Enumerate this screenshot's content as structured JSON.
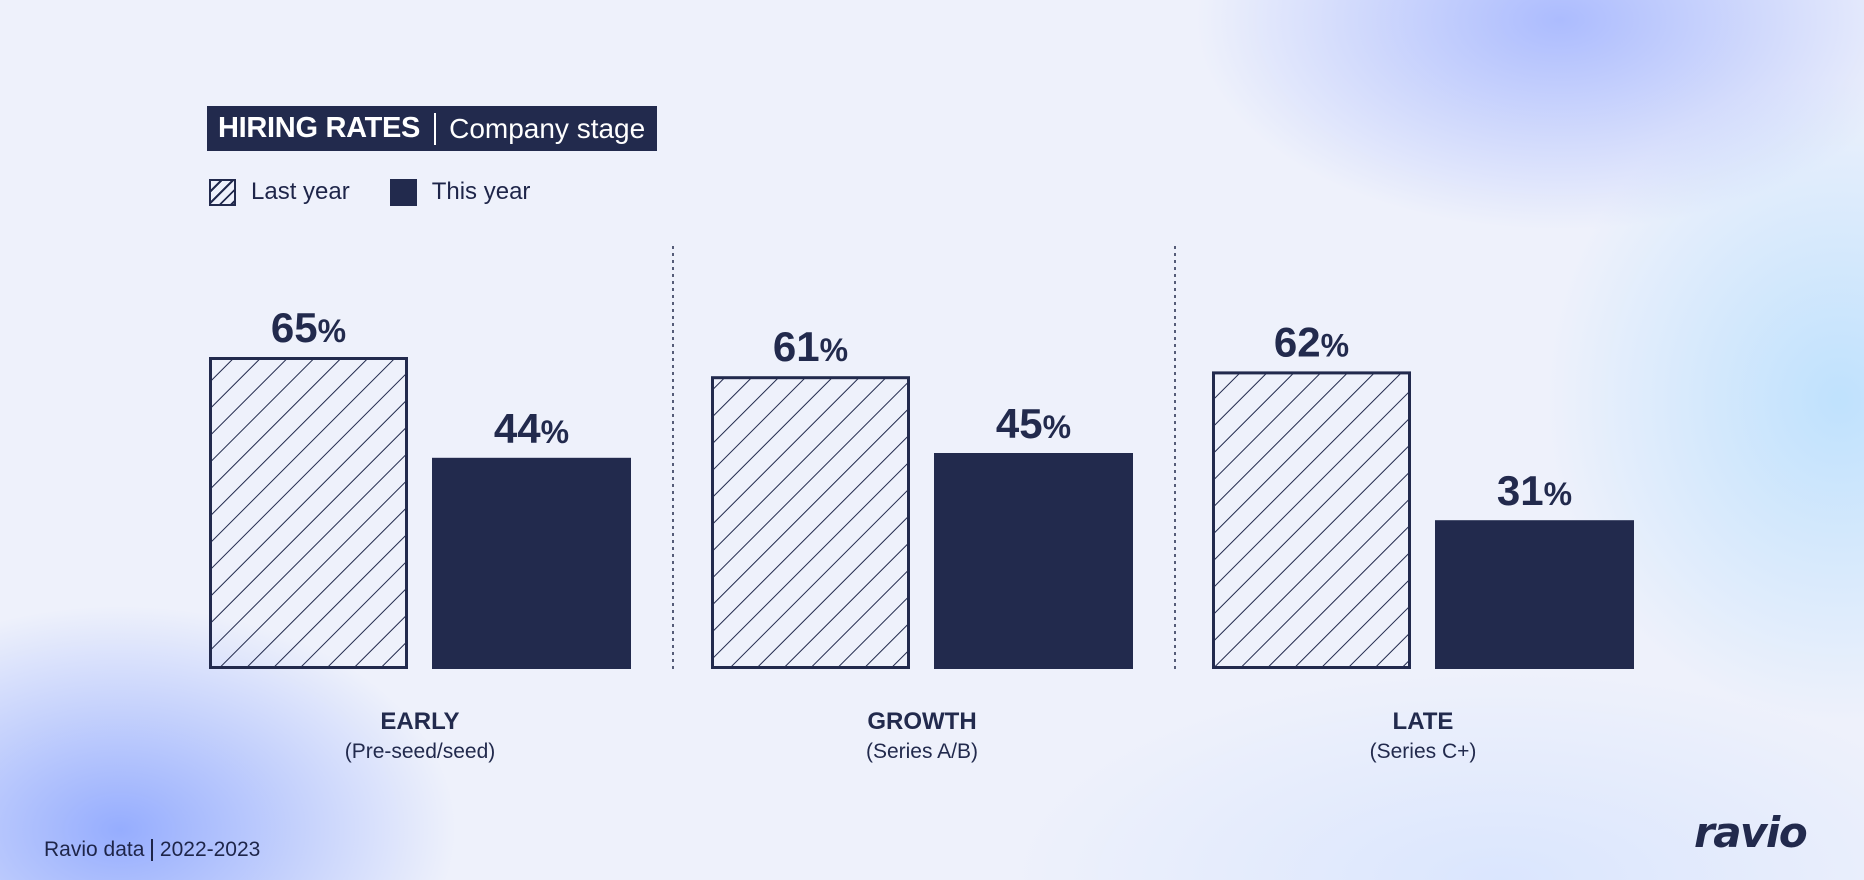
{
  "title": {
    "main": "HIRING RATES",
    "sub": "Company stage"
  },
  "legend": {
    "last_year": "Last year",
    "this_year": "This year"
  },
  "footer": {
    "source": "Ravio data",
    "years": "2022-2023"
  },
  "logo": "ravio",
  "colors": {
    "navy": "#222a4d",
    "background": "#eef1fb"
  },
  "chart_data": {
    "type": "bar",
    "categories": [
      "EARLY",
      "GROWTH",
      "LATE"
    ],
    "subcategories": [
      "(Pre-seed/seed)",
      "(Series A/B)",
      "(Series C+)"
    ],
    "series": [
      {
        "name": "Last year",
        "values": [
          65,
          61,
          62
        ],
        "labels": [
          "65",
          "61",
          "62"
        ],
        "style": "hatched"
      },
      {
        "name": "This year",
        "values": [
          44,
          45,
          31
        ],
        "labels": [
          "44",
          "45",
          "31"
        ],
        "style": "solid"
      }
    ],
    "unit": "%",
    "ylim": [
      0,
      100
    ],
    "grid": false,
    "legend_position": "top-left"
  }
}
